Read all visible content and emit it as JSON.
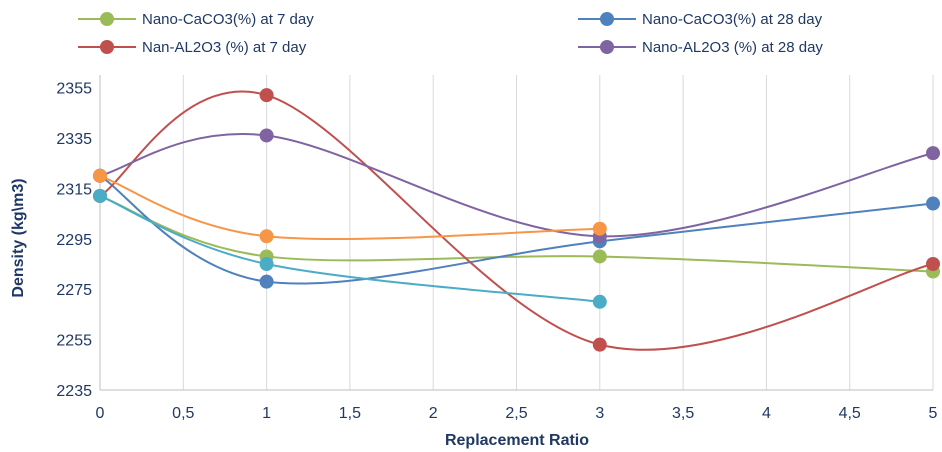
{
  "chart_data": {
    "type": "line",
    "xlabel": "Replacement Ratio",
    "ylabel": "Density (kg\\m3)",
    "xlim": [
      0,
      5
    ],
    "ylim": [
      2235,
      2360
    ],
    "x_ticks": [
      "0",
      "0,5",
      "1",
      "1,5",
      "2",
      "2,5",
      "3",
      "3,5",
      "4",
      "4,5",
      "5"
    ],
    "y_ticks": [
      "2235",
      "2255",
      "2275",
      "2295",
      "2315",
      "2335",
      "2355"
    ],
    "grid": "vertical",
    "legend_position": "top",
    "series": [
      {
        "name": "Nano-CaCO3(%) at 7 day",
        "color": "#9bbb59",
        "x": [
          0,
          1,
          3,
          5
        ],
        "y": [
          2312,
          2288,
          2288,
          2282
        ],
        "in_legend": true
      },
      {
        "name": "Nano-CaCO3(%) at 28 day",
        "color": "#4f81bd",
        "x": [
          0,
          1,
          3,
          5
        ],
        "y": [
          2320,
          2278,
          2294,
          2309
        ],
        "in_legend": true
      },
      {
        "name": "Nan-AL2O3  (%) at 7 day",
        "color": "#c0504d",
        "x": [
          0,
          1,
          3,
          5
        ],
        "y": [
          2312,
          2352,
          2253,
          2285
        ],
        "in_legend": true
      },
      {
        "name": "Nano-AL2O3  (%) at 28 day",
        "color": "#8064a2",
        "x": [
          0,
          1,
          3,
          5
        ],
        "y": [
          2320,
          2336,
          2296,
          2329
        ],
        "in_legend": true
      },
      {
        "name": "",
        "color": "#f79646",
        "x": [
          0,
          1,
          3
        ],
        "y": [
          2320,
          2296,
          2299
        ],
        "in_legend": false
      },
      {
        "name": "",
        "color": "#4bacc6",
        "x": [
          0,
          1,
          3
        ],
        "y": [
          2312,
          2285,
          2270
        ],
        "in_legend": false
      }
    ]
  }
}
